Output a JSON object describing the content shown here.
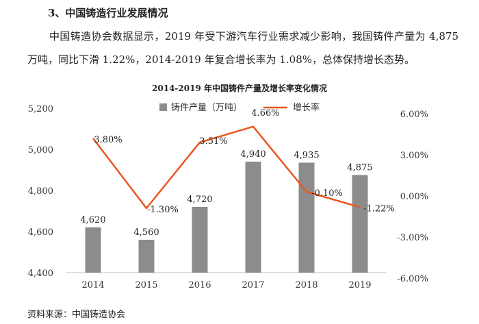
{
  "heading": "3、中国铸造行业发展情况",
  "paragraph": "中国铸造协会数据显示，2019 年受下游汽车行业需求减少影响，我国铸件产量为 4,875 万吨，同比下滑 1.22%，2014-2019 年复合增长率为 1.08%，总体保持增长态势。",
  "source": "资料来源：中国铸造协会",
  "colors": {
    "bar": "#8c8c8c",
    "line": "#e8581c",
    "axis": "#bfbfbf"
  },
  "chart_data": {
    "type": "bar",
    "title": "2014-2019 年中国铸件产量及增长率变化情况",
    "categories": [
      "2014",
      "2015",
      "2016",
      "2017",
      "2018",
      "2019"
    ],
    "series": [
      {
        "name": "铸件产量（万吨）",
        "type": "bar",
        "axis": "left",
        "values": [
          4620,
          4560,
          4720,
          4940,
          4935,
          4875
        ],
        "labels": [
          "4,620",
          "4,560",
          "4,720",
          "4,940",
          "4,935",
          "4,875"
        ]
      },
      {
        "name": "增长率",
        "type": "line",
        "axis": "right",
        "values": [
          3.8,
          -1.3,
          3.51,
          4.66,
          -0.1,
          -1.22
        ],
        "labels": [
          "3.80%",
          "-1.30%",
          "3.51%",
          "4.66%",
          "-0.10%",
          "-1.22%"
        ]
      }
    ],
    "y_left": {
      "min": 4400,
      "max": 5200,
      "ticks": [
        4400,
        4600,
        4800,
        5000,
        5200
      ],
      "tick_labels": [
        "4,400",
        "4,600",
        "4,800",
        "5,000",
        "5,200"
      ]
    },
    "y_right": {
      "min": -6,
      "max": 6,
      "ticks": [
        -6,
        -3,
        0,
        3,
        6
      ],
      "tick_labels": [
        "-6.00%",
        "-3.00%",
        "0.00%",
        "3.00%",
        "6.00%"
      ]
    },
    "legend": "top-center",
    "grid": false
  }
}
